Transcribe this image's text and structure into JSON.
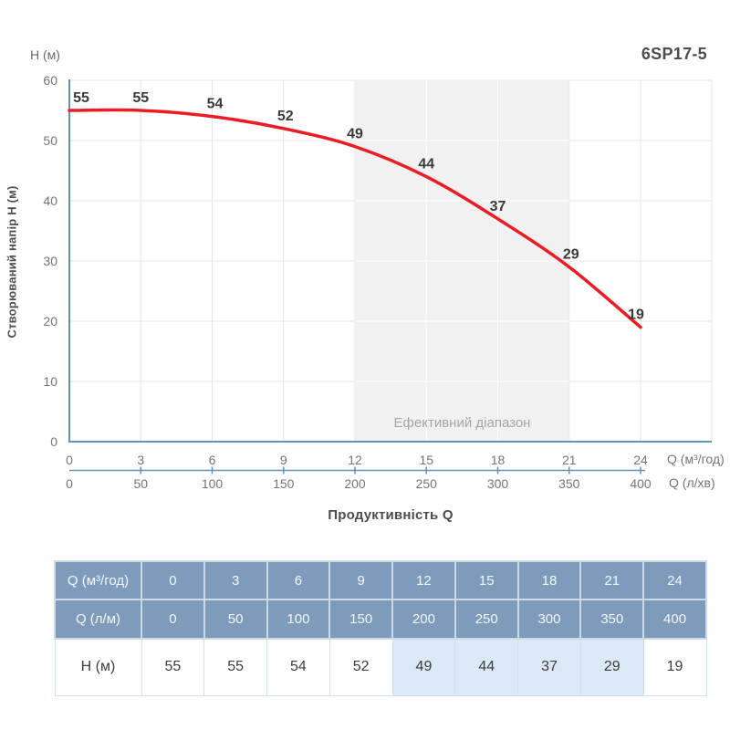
{
  "title": "6SP17-5",
  "chart": {
    "y_axis_top_label": "H (м)",
    "y_axis_label": "Створюваний напір H (м)",
    "x_axis_title": "Продуктивність Q",
    "x_unit_primary": "Q (м³/год)",
    "x_unit_secondary": "Q (л/хв)",
    "effective_range_label": "Ефективний діапазон"
  },
  "chart_data": {
    "type": "line",
    "title": "6SP17-5",
    "x": [
      0,
      3,
      6,
      9,
      12,
      15,
      18,
      21,
      24
    ],
    "x_secondary": [
      0,
      50,
      100,
      150,
      200,
      250,
      300,
      350,
      400
    ],
    "series": [
      {
        "name": "H (м)",
        "values": [
          55,
          55,
          54,
          52,
          49,
          44,
          37,
          29,
          19
        ]
      }
    ],
    "point_labels": [
      "55",
      "55",
      "54",
      "52",
      "49",
      "44",
      "37",
      "29",
      "19"
    ],
    "y_ticks": [
      0,
      10,
      20,
      30,
      40,
      50,
      60
    ],
    "ylim": [
      0,
      60
    ],
    "xlim": [
      0,
      24
    ],
    "effective_range": [
      12,
      21
    ],
    "xlabel": "Продуктивність Q",
    "ylabel": "Створюваний напір H (м)",
    "grid": true,
    "legend": false
  },
  "colors": {
    "curve": "#ed1c24",
    "axis": "#5f93b8",
    "grid": "#e6e6e6",
    "band": "#f1f1f1",
    "band_grid": "#ffffff",
    "tick_text": "#757575",
    "point_label": "#3a3a3a",
    "title_text": "#4c4c4c",
    "band_text": "#a5a5a5",
    "table_header_bg": "#7e9bbc",
    "table_header_text": "#f4f8fb",
    "table_highlight": "#dbe8f5",
    "table_border": "#cfe0ee",
    "table_text": "#3d3d3d"
  },
  "table": {
    "rows": [
      {
        "type": "header",
        "label": "Q (м³/год)",
        "values": [
          "0",
          "3",
          "6",
          "9",
          "12",
          "15",
          "18",
          "21",
          "24"
        ]
      },
      {
        "type": "header",
        "label": "Q (л/м)",
        "values": [
          "0",
          "50",
          "100",
          "150",
          "200",
          "250",
          "300",
          "350",
          "400"
        ]
      },
      {
        "type": "data",
        "label": "H (м)",
        "values": [
          "55",
          "55",
          "54",
          "52",
          "49",
          "44",
          "37",
          "29",
          "19"
        ],
        "highlight_cols": [
          4,
          5,
          6,
          7
        ]
      }
    ]
  }
}
